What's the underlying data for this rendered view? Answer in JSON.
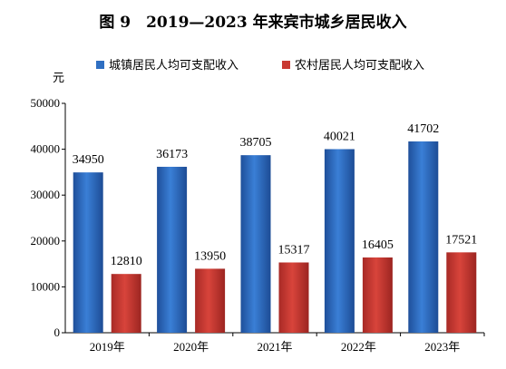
{
  "chart_data": {
    "type": "bar",
    "title": "图 9　2019—2023 年来宾市城乡居民收入",
    "unit_label": "元",
    "categories": [
      "2019年",
      "2020年",
      "2021年",
      "2022年",
      "2023年"
    ],
    "series": [
      {
        "name": "城镇居民人均可支配收入",
        "values": [
          34950,
          36173,
          38705,
          40021,
          41702
        ],
        "color": "#2f6fc2"
      },
      {
        "name": "农村居民人均可支配收入",
        "values": [
          12810,
          13950,
          15317,
          16405,
          17521
        ],
        "color": "#c93a33"
      }
    ],
    "ylim": [
      0,
      50000
    ],
    "yticks": [
      0,
      10000,
      20000,
      30000,
      40000,
      50000
    ],
    "legend_position": "top",
    "grid": false
  }
}
